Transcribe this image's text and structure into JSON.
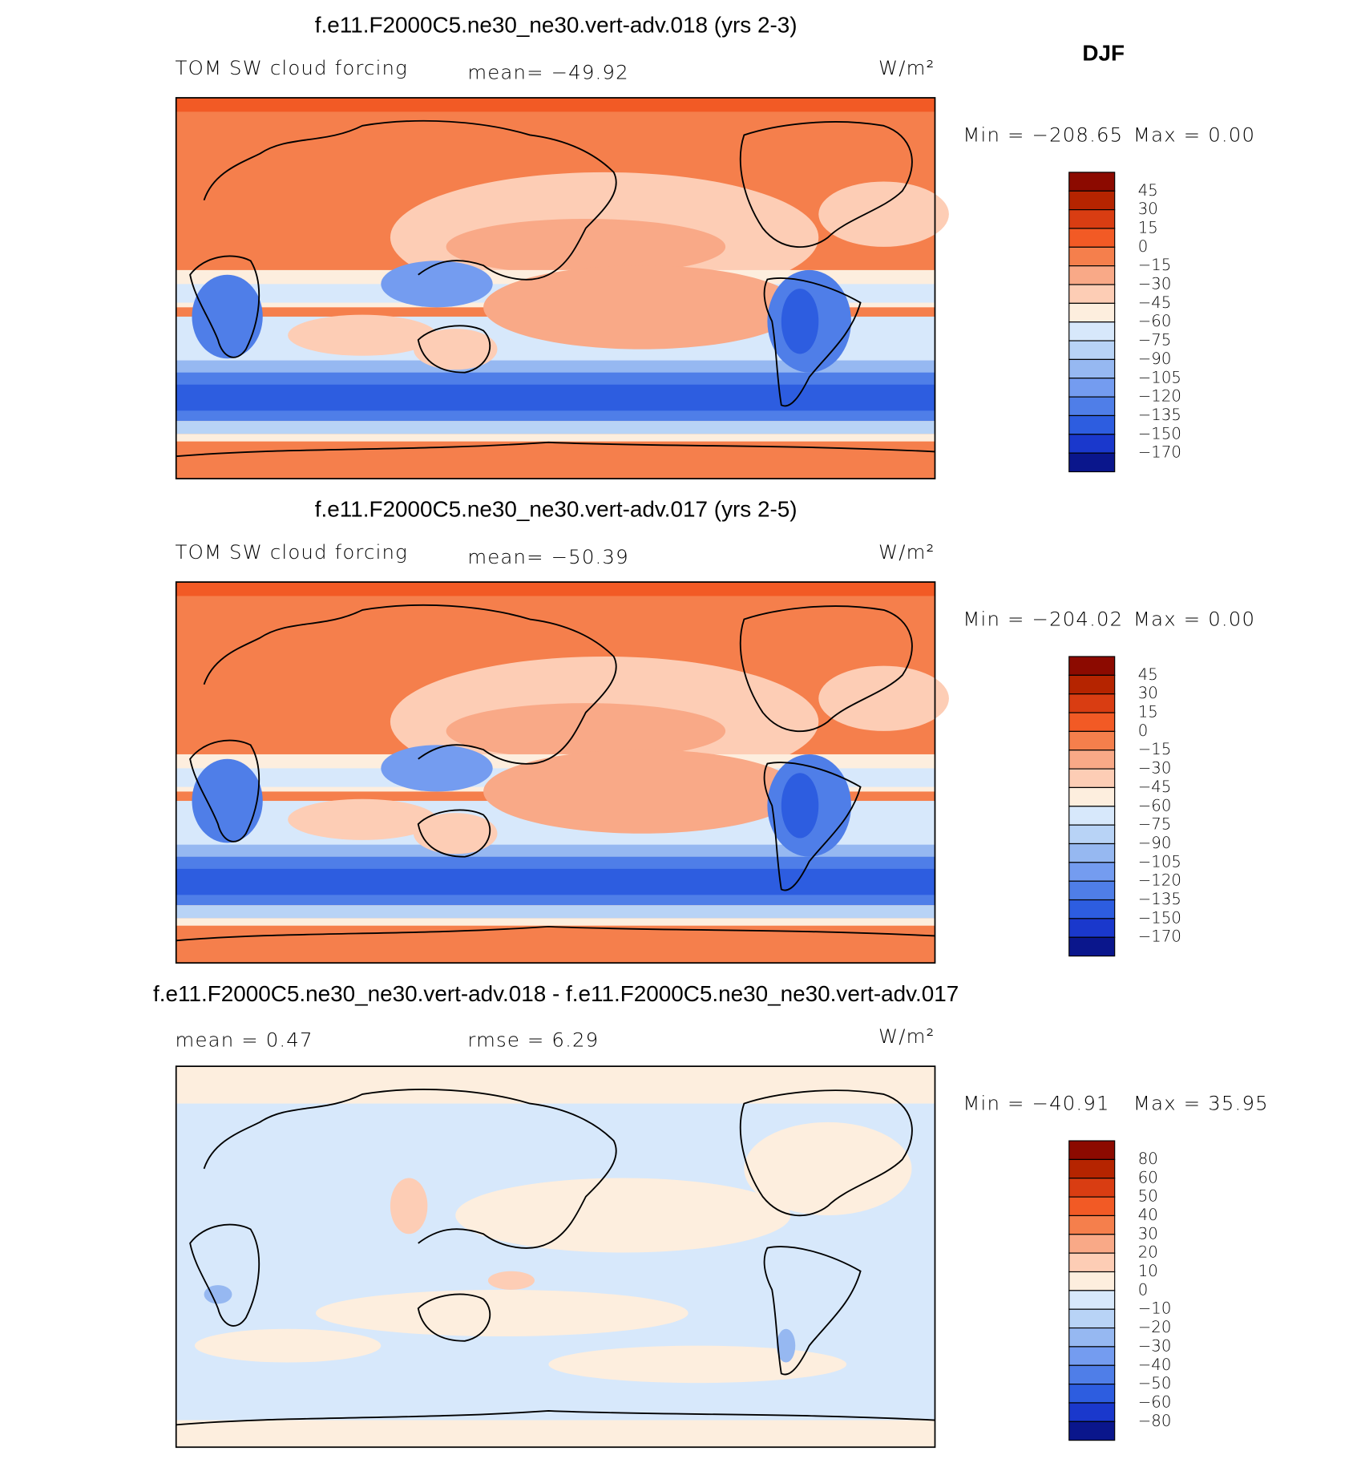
{
  "season": "DJF",
  "panels": [
    {
      "title": "f.e11.F2000C5.ne30_ne30.vert-adv.018 (yrs 2-3)",
      "left": "TOM SW cloud forcing",
      "middle": "mean= −49.92",
      "units": "W/m²",
      "min": "Min = −208.65",
      "max": "Max =    0.00",
      "colorbar": {
        "labels": [
          "45",
          "30",
          "15",
          "0",
          "−15",
          "−30",
          "−45",
          "−60",
          "−75",
          "−90",
          "−105",
          "−120",
          "−135",
          "−150",
          "−170"
        ],
        "colors": [
          "#8c0a00",
          "#b52400",
          "#d93d12",
          "#f25a25",
          "#f57f4c",
          "#f9a987",
          "#fdcdb5",
          "#fdeede",
          "#d7e8fb",
          "#b8d3f6",
          "#96b8f1",
          "#749cf0",
          "#4f7ee8",
          "#2d5de0",
          "#1a38cc",
          "#0a168c"
        ]
      }
    },
    {
      "title": "f.e11.F2000C5.ne30_ne30.vert-adv.017 (yrs 2-5)",
      "left": "TOM SW cloud forcing",
      "middle": "mean= −50.39",
      "units": "W/m²",
      "min": "Min = −204.02",
      "max": "Max =    0.00",
      "colorbar": {
        "labels": [
          "45",
          "30",
          "15",
          "0",
          "−15",
          "−30",
          "−45",
          "−60",
          "−75",
          "−90",
          "−105",
          "−120",
          "−135",
          "−150",
          "−170"
        ],
        "colors": [
          "#8c0a00",
          "#b52400",
          "#d93d12",
          "#f25a25",
          "#f57f4c",
          "#f9a987",
          "#fdcdb5",
          "#fdeede",
          "#d7e8fb",
          "#b8d3f6",
          "#96b8f1",
          "#749cf0",
          "#4f7ee8",
          "#2d5de0",
          "#1a38cc",
          "#0a168c"
        ]
      }
    },
    {
      "title": "f.e11.F2000C5.ne30_ne30.vert-adv.018 - f.e11.F2000C5.ne30_ne30.vert-adv.017",
      "left": "mean =    0.47",
      "middle": "rmse =    6.29",
      "units": "W/m²",
      "min": "Min = −40.91",
      "max": "Max =   35.95",
      "colorbar": {
        "labels": [
          "80",
          "60",
          "50",
          "40",
          "30",
          "20",
          "10",
          "0",
          "−10",
          "−20",
          "−30",
          "−40",
          "−50",
          "−60",
          "−80"
        ],
        "colors": [
          "#8c0a00",
          "#b52400",
          "#d93d12",
          "#f25a25",
          "#f57f4c",
          "#f9a987",
          "#fdcdb5",
          "#fdeede",
          "#d7e8fb",
          "#b8d3f6",
          "#96b8f1",
          "#749cf0",
          "#4f7ee8",
          "#2d5de0",
          "#1a38cc",
          "#0a168c"
        ]
      }
    }
  ]
}
